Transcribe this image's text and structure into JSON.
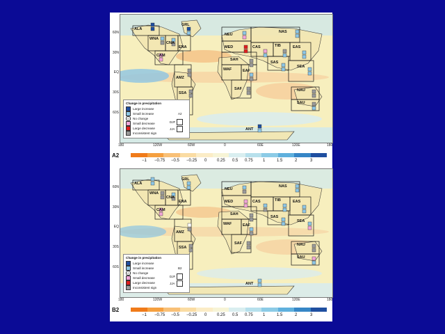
{
  "panels": [
    {
      "id": "A2",
      "label": "A2",
      "legend": {
        "title": "Change in precipitation",
        "items": [
          {
            "label": "Large increase",
            "color": "#1f4fa0"
          },
          {
            "label": "Small increase",
            "color": "#8ec7e6"
          },
          {
            "label": "No change",
            "color": "#ffffff",
            "symbol": "0"
          },
          {
            "label": "Small decrease",
            "color": "#f2a6d8"
          },
          {
            "label": "Large decrease",
            "color": "#e01e1e"
          },
          {
            "label": "Inconsistent sign",
            "color": "#9a9a9a"
          }
        ],
        "djf": "DJF",
        "jja": "JJA",
        "scenario": "A2"
      }
    },
    {
      "id": "B2",
      "label": "B2",
      "legend": {
        "title": "Change in precipitation",
        "items": [
          {
            "label": "Large increase",
            "color": "#1f4fa0"
          },
          {
            "label": "Small increase",
            "color": "#8ec7e6"
          },
          {
            "label": "No change",
            "color": "#ffffff",
            "symbol": "0"
          },
          {
            "label": "Small decrease",
            "color": "#f2a6d8"
          },
          {
            "label": "Large decrease",
            "color": "#e01e1e"
          },
          {
            "label": "Inconsistent sign",
            "color": "#9a9a9a"
          }
        ],
        "djf": "DJF",
        "jja": "JJA",
        "scenario": "B2"
      }
    }
  ],
  "lat_labels": [
    "60N",
    "30N",
    "EQ",
    "30S",
    "60S"
  ],
  "lon_labels": [
    "180",
    "120W",
    "60W",
    "0",
    "60E",
    "120E",
    "180"
  ],
  "regions": [
    "ALA",
    "GRL",
    "WNA",
    "CNA",
    "ENA",
    "CAM",
    "AMZ",
    "SSA",
    "NEU",
    "MED",
    "SAH",
    "WAF",
    "EAF",
    "SAF",
    "NAS",
    "CAS",
    "TIB",
    "EAS",
    "SAS",
    "SEA",
    "NAU",
    "SAU",
    "ANT"
  ],
  "colorbar": {
    "ticks": [
      "−1",
      "−0.75",
      "−0.5",
      "−0.25",
      "0",
      "0.25",
      "0.5",
      "0.75",
      "1",
      "1.5",
      "2",
      "3"
    ],
    "colors": [
      "#f07b1a",
      "#f5a040",
      "#f8c077",
      "#fadca3",
      "#fbecc6",
      "#f7f4d6",
      "#d9eef0",
      "#b7e0ec",
      "#8ccbe6",
      "#5fb0dd",
      "#3686c6",
      "#1f4fa0"
    ]
  }
}
